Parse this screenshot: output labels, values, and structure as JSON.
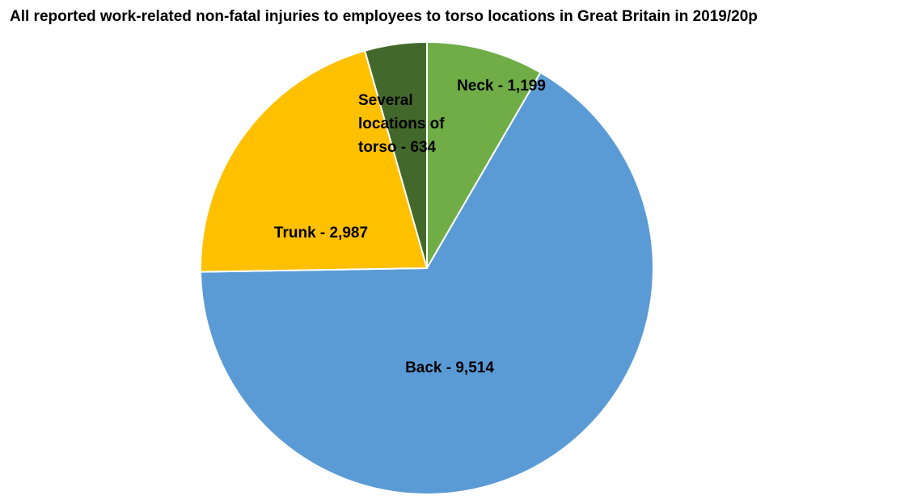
{
  "chart_data": {
    "type": "pie",
    "title": "All reported work-related non-fatal injuries to employees to torso locations in Great Britain in 2019/20p",
    "values": [
      1199,
      9514,
      2987,
      634
    ],
    "value_labels": [
      "Neck - 1,199",
      "Back - 9,514",
      "Trunk - 2,987",
      "Several locations of torso - 634"
    ],
    "colors": [
      "#70ad47",
      "#5b9bd5",
      "#ffc000",
      "#43682b"
    ]
  }
}
